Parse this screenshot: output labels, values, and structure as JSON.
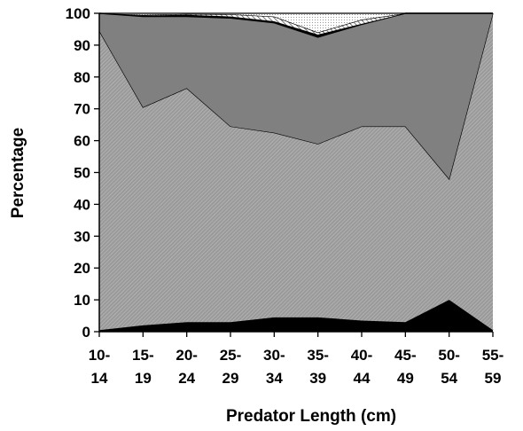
{
  "chart_data": {
    "type": "area",
    "stacked": true,
    "xlabel": "Predator Length (cm)",
    "ylabel": "Percentage",
    "ylim": [
      0,
      100
    ],
    "yticks": [
      0,
      10,
      20,
      30,
      40,
      50,
      60,
      70,
      80,
      90,
      100
    ],
    "grid": false,
    "legend": "none",
    "categories": [
      [
        "10-",
        "14"
      ],
      [
        "15-",
        "19"
      ],
      [
        "20-",
        "24"
      ],
      [
        "25-",
        "29"
      ],
      [
        "30-",
        "34"
      ],
      [
        "35-",
        "39"
      ],
      [
        "40-",
        "44"
      ],
      [
        "45-",
        "49"
      ],
      [
        "50-",
        "54"
      ],
      [
        "55-",
        "59"
      ]
    ],
    "series": [
      {
        "values": [
          0.5,
          2,
          3,
          3,
          4.5,
          4.5,
          3.5,
          3,
          10,
          0.5
        ],
        "color": "#000000",
        "fill": "solid"
      },
      {
        "values": [
          94,
          68.5,
          73.5,
          61.5,
          58,
          54.5,
          61,
          61.5,
          38,
          99.5
        ],
        "color": "#a6a6a6",
        "fill": "fine-hatch"
      },
      {
        "values": [
          5.5,
          28.5,
          22.5,
          34,
          34.5,
          33.5,
          32,
          35.5,
          52,
          0
        ],
        "color": "#808080",
        "fill": "solid"
      },
      {
        "values": [
          0,
          0.3,
          0.5,
          0.5,
          0.5,
          0.8,
          0.2,
          0,
          0,
          0
        ],
        "color": "#000000",
        "fill": "solid"
      },
      {
        "values": [
          0,
          0.2,
          0.3,
          0.7,
          1.5,
          0.7,
          1.3,
          0,
          0,
          0
        ],
        "color": "#808080",
        "fill": "coarse-hatch"
      },
      {
        "values": [
          0,
          0.5,
          0.2,
          0.3,
          1,
          6,
          2,
          0,
          0,
          0
        ],
        "color": "#ffffff",
        "fill": "dot"
      }
    ]
  }
}
